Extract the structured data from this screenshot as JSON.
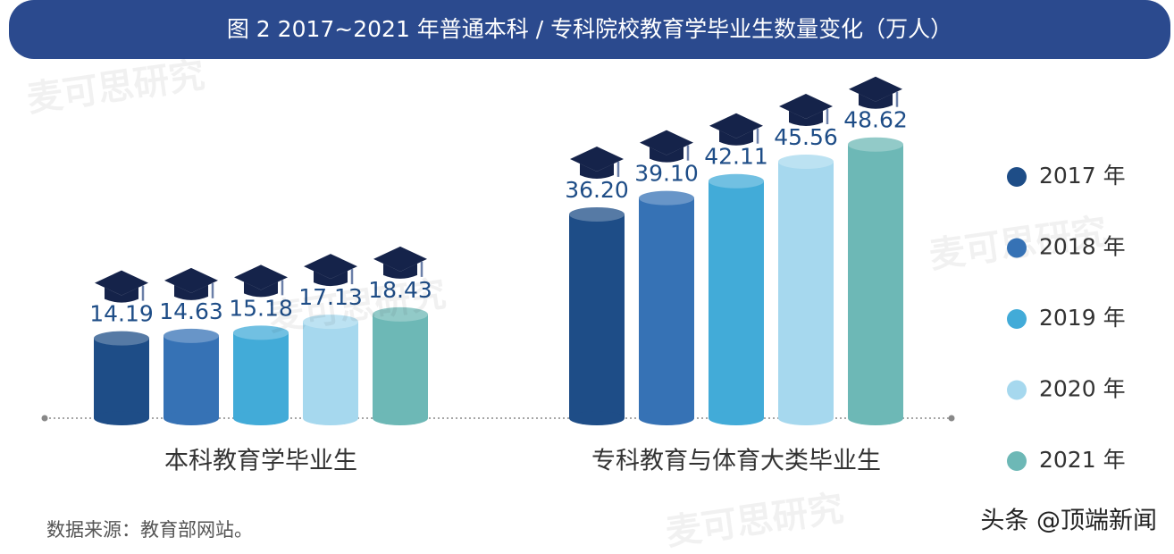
{
  "chart_data": {
    "type": "bar",
    "title": "图 2  2017~2021 年普通本科 / 专科院校教育学毕业生数量变化（万人）",
    "categories": [
      "本科教育学毕业生",
      "专科教育与体育大类毕业生"
    ],
    "series": [
      {
        "name": "2017 年",
        "color": "#1e4d87",
        "values": [
          14.19,
          36.2
        ],
        "value_labels": [
          "14.19",
          "36.20"
        ]
      },
      {
        "name": "2018 年",
        "color": "#3672b5",
        "values": [
          14.63,
          39.1
        ],
        "value_labels": [
          "14.63",
          "39.10"
        ]
      },
      {
        "name": "2019 年",
        "color": "#42abd8",
        "values": [
          15.18,
          42.11
        ],
        "value_labels": [
          "15.18",
          "42.11"
        ]
      },
      {
        "name": "2020 年",
        "color": "#a6d8ee",
        "values": [
          17.13,
          45.56
        ],
        "value_labels": [
          "17.13",
          "45.56"
        ]
      },
      {
        "name": "2021 年",
        "color": "#6db8b6",
        "values": [
          18.43,
          48.62
        ],
        "value_labels": [
          "18.43",
          "48.62"
        ]
      }
    ],
    "legend": "right",
    "source": "数据来源：教育部网站。",
    "credit": "头条 @顶端新闻",
    "watermark": "麦可思研究"
  }
}
